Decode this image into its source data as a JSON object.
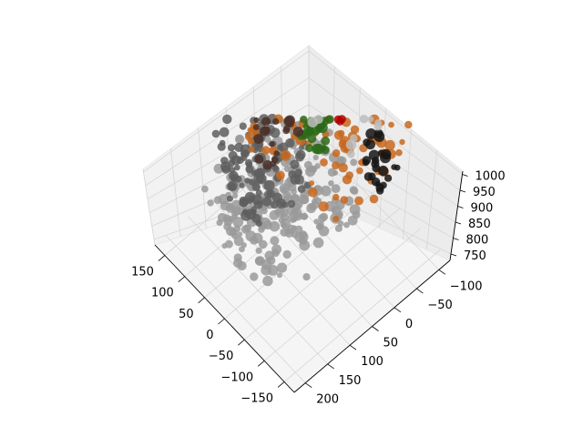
{
  "chart_data": {
    "type": "scatter",
    "projection": "3d",
    "title": "",
    "xlabel": "",
    "ylabel": "",
    "zlabel": "",
    "x_axis": {
      "ticks": [
        150,
        100,
        50,
        0,
        -50,
        -100,
        -150
      ],
      "labels": [
        "150",
        "100",
        "50",
        "0",
        "−50",
        "−100",
        "−150"
      ]
    },
    "y_axis": {
      "ticks": [
        200,
        150,
        100,
        50,
        0,
        -50,
        -100
      ],
      "labels": [
        "200",
        "150",
        "100",
        "50",
        "0",
        "−50",
        "−100"
      ]
    },
    "z_axis": {
      "ticks": [
        750,
        800,
        850,
        900,
        950,
        1000
      ],
      "labels": [
        "750",
        "800",
        "850",
        "900",
        "950",
        "1000"
      ]
    },
    "grid": true,
    "legend": "none",
    "point_cloud": {
      "description_colors": [
        "#8c8c8c",
        "#b0b0b0",
        "#5a5a5a",
        "#c7601e",
        "#b00000",
        "#141414",
        "#1f5f10",
        "#5a3a2a"
      ],
      "regions": [
        {
          "color": "#9a9a9a",
          "x": [
            -60,
            120
          ],
          "y": [
            -40,
            180
          ],
          "z": [
            750,
            860
          ],
          "n": 260
        },
        {
          "color": "#5e5e5e",
          "x": [
            40,
            150
          ],
          "y": [
            0,
            120
          ],
          "z": [
            760,
            860
          ],
          "n": 120
        },
        {
          "color": "#c8691f",
          "x": [
            -120,
            150
          ],
          "y": [
            -120,
            80
          ],
          "z": [
            830,
            960
          ],
          "n": 150
        },
        {
          "color": "#b00000",
          "x": [
            -30,
            40
          ],
          "y": [
            -80,
            -10
          ],
          "z": [
            880,
            1000
          ],
          "n": 70
        },
        {
          "color": "#151515",
          "x": [
            20,
            80
          ],
          "y": [
            -110,
            -60
          ],
          "z": [
            880,
            990
          ],
          "n": 55
        },
        {
          "color": "#151515",
          "x": [
            -140,
            -90
          ],
          "y": [
            -60,
            0
          ],
          "z": [
            860,
            960
          ],
          "n": 30
        },
        {
          "color": "#2a6a18",
          "x": [
            -20,
            40
          ],
          "y": [
            -20,
            30
          ],
          "z": [
            860,
            920
          ],
          "n": 40
        },
        {
          "color": "#bdbdbd",
          "x": [
            -80,
            100
          ],
          "y": [
            -120,
            40
          ],
          "z": [
            880,
            1000
          ],
          "n": 90
        },
        {
          "color": "#4a3028",
          "x": [
            100,
            160
          ],
          "y": [
            -60,
            40
          ],
          "z": [
            780,
            880
          ],
          "n": 40
        }
      ]
    }
  }
}
